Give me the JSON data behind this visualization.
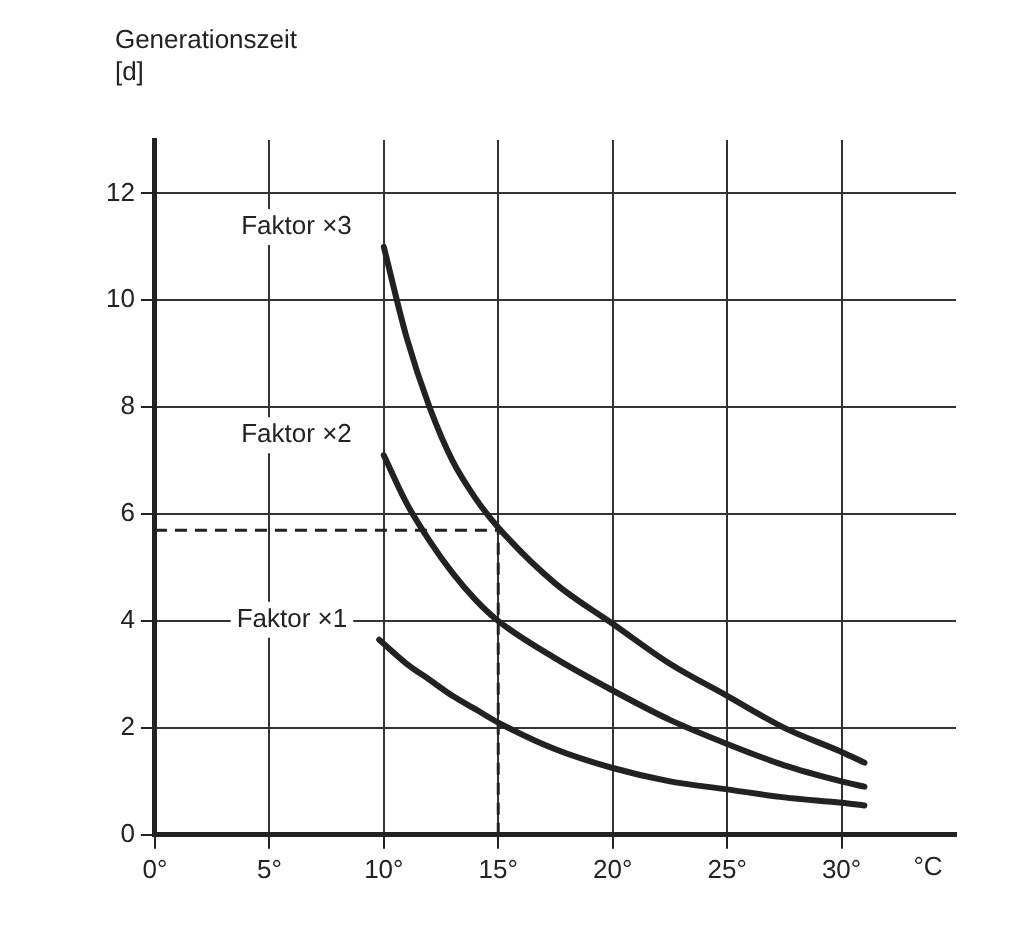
{
  "chart_data": {
    "type": "line",
    "xlabel": "°C",
    "ylabel": "Generationszeit\n[d]",
    "xlim": [
      0,
      35
    ],
    "ylim": [
      0,
      13
    ],
    "xticks": [
      {
        "value": 0,
        "label": "0°"
      },
      {
        "value": 5,
        "label": "5°"
      },
      {
        "value": 10,
        "label": "10°"
      },
      {
        "value": 15,
        "label": "15°"
      },
      {
        "value": 20,
        "label": "20°"
      },
      {
        "value": 25,
        "label": "25°"
      },
      {
        "value": 30,
        "label": "30°"
      }
    ],
    "yticks": [
      0,
      2,
      4,
      6,
      8,
      10,
      12
    ],
    "grid": true,
    "legend": false,
    "marker": "none",
    "line_style": "solid",
    "series": [
      {
        "name": "Faktor ×3",
        "color": "#222222",
        "x": [
          10,
          11,
          12,
          13,
          14,
          15,
          17.5,
          20,
          22.5,
          25,
          27.5,
          30,
          31
        ],
        "values": [
          11.0,
          9.3,
          8.0,
          7.0,
          6.3,
          5.75,
          4.7,
          3.95,
          3.2,
          2.6,
          2.0,
          1.55,
          1.35
        ]
      },
      {
        "name": "Faktor ×2",
        "color": "#222222",
        "x": [
          10,
          11,
          12,
          13,
          14,
          15,
          17.5,
          20,
          22.5,
          25,
          27.5,
          30,
          31
        ],
        "values": [
          7.1,
          6.2,
          5.5,
          4.9,
          4.4,
          4.0,
          3.3,
          2.7,
          2.15,
          1.7,
          1.3,
          1.0,
          0.9
        ]
      },
      {
        "name": "Faktor ×1",
        "color": "#222222",
        "x": [
          9.8,
          11,
          12,
          13,
          14,
          15,
          17.5,
          20,
          22.5,
          25,
          27.5,
          30,
          31
        ],
        "values": [
          3.65,
          3.2,
          2.9,
          2.6,
          2.35,
          2.1,
          1.6,
          1.25,
          1.0,
          0.85,
          0.7,
          0.6,
          0.55
        ]
      }
    ],
    "ref_lines": [
      {
        "axis": "x",
        "value": 15,
        "line_style": "dashed",
        "color": "#222222"
      },
      {
        "axis": "y",
        "value": 5.7,
        "line_style": "dashed",
        "color": "#222222"
      }
    ]
  }
}
